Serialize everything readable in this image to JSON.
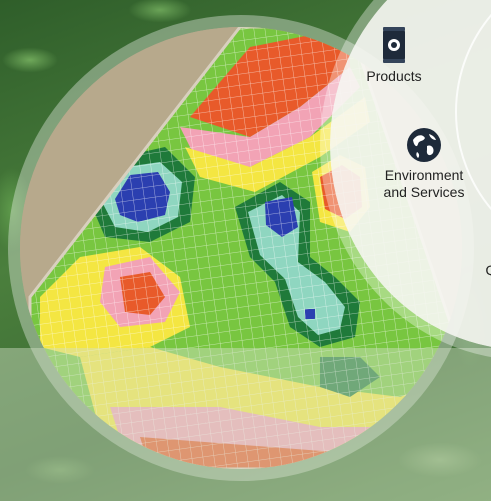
{
  "menu": {
    "items": [
      {
        "label": "Products",
        "icon": "product-bag-icon"
      },
      {
        "label": "Environment\nand Services",
        "icon": "globe-icon"
      },
      {
        "label": "Q",
        "icon": ""
      }
    ]
  },
  "colors": {
    "background": "#3f6f35",
    "menu_circle": "#f6f6f2",
    "icon_dark": "#1e2a3a",
    "zone_red": "#e85a2a",
    "zone_yellow": "#f4e642",
    "zone_green": "#7ac943",
    "zone_dark_green": "#1f7a3a",
    "zone_teal": "#8fd6c0",
    "zone_blue": "#2b3fb0",
    "zone_pink": "#f2a3b5"
  }
}
